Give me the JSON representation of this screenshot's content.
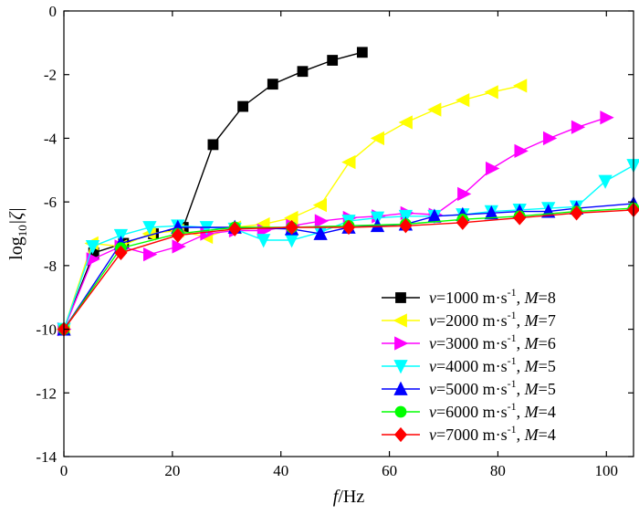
{
  "chart_data": {
    "type": "line",
    "xlabel": {
      "italic": "f",
      "rest": "/Hz"
    },
    "ylabel": {
      "pre": "log",
      "sub": "10",
      "post": "|ζ|"
    },
    "xlim": [
      0,
      105
    ],
    "ylim": [
      -14,
      0
    ],
    "xticks": [
      0,
      20,
      40,
      60,
      80,
      100
    ],
    "yticks": [
      0,
      -2,
      -4,
      -6,
      -8,
      -10,
      -12,
      -14
    ],
    "grid": false,
    "legend_position": "bottom-right",
    "series": [
      {
        "name": "v=1000 m·s-1, M=8",
        "legend": {
          "v": "1000",
          "unit": "m·s",
          "exp": "-1",
          "M": "8"
        },
        "color": "#000000",
        "marker": "square",
        "points": [
          [
            0,
            -10
          ],
          [
            5.5,
            -7.6
          ],
          [
            11,
            -7.3
          ],
          [
            16.5,
            -7.0
          ],
          [
            22,
            -6.8
          ],
          [
            27.5,
            -4.2
          ],
          [
            33,
            -3.0
          ],
          [
            38.5,
            -2.3
          ],
          [
            44,
            -1.9
          ],
          [
            49.5,
            -1.55
          ],
          [
            55,
            -1.3
          ]
        ]
      },
      {
        "name": "v=2000 m·s-1, M=7",
        "legend": {
          "v": "2000",
          "unit": "m·s",
          "exp": "-1",
          "M": "7"
        },
        "color": "#ffff00",
        "marker": "triangle-left",
        "points": [
          [
            0,
            -10
          ],
          [
            5.2,
            -7.3
          ],
          [
            10.5,
            -7.4
          ],
          [
            15.8,
            -7.0
          ],
          [
            21,
            -6.9
          ],
          [
            26.3,
            -7.1
          ],
          [
            31.5,
            -6.8
          ],
          [
            36.8,
            -6.7
          ],
          [
            42,
            -6.5
          ],
          [
            47.3,
            -6.1
          ],
          [
            52.6,
            -4.75
          ],
          [
            57.9,
            -4.0
          ],
          [
            63.1,
            -3.5
          ],
          [
            68.4,
            -3.1
          ],
          [
            73.6,
            -2.8
          ],
          [
            78.9,
            -2.55
          ],
          [
            84.2,
            -2.35
          ]
        ]
      },
      {
        "name": "v=3000 m·s-1, M=6",
        "legend": {
          "v": "3000",
          "unit": "m·s",
          "exp": "-1",
          "M": "6"
        },
        "color": "#ff00ff",
        "marker": "triangle-right",
        "points": [
          [
            0,
            -10
          ],
          [
            5.3,
            -7.8
          ],
          [
            10.5,
            -7.4
          ],
          [
            15.8,
            -7.65
          ],
          [
            21.1,
            -7.4
          ],
          [
            26.3,
            -7.0
          ],
          [
            31.6,
            -6.9
          ],
          [
            36.8,
            -6.9
          ],
          [
            42.1,
            -6.75
          ],
          [
            47.4,
            -6.6
          ],
          [
            52.6,
            -6.5
          ],
          [
            57.9,
            -6.45
          ],
          [
            63.2,
            -6.35
          ],
          [
            68.4,
            -6.4
          ],
          [
            73.7,
            -5.75
          ],
          [
            78.9,
            -4.95
          ],
          [
            84.2,
            -4.4
          ],
          [
            89.5,
            -4.0
          ],
          [
            94.7,
            -3.65
          ],
          [
            100,
            -3.35
          ]
        ]
      },
      {
        "name": "v=4000 m·s-1, M=5",
        "legend": {
          "v": "4000",
          "unit": "m·s",
          "exp": "-1",
          "M": "5"
        },
        "color": "#00ffff",
        "marker": "triangle-down",
        "points": [
          [
            0,
            -10
          ],
          [
            5.3,
            -7.4
          ],
          [
            10.5,
            -7.05
          ],
          [
            15.8,
            -6.8
          ],
          [
            21,
            -6.75
          ],
          [
            26.3,
            -6.8
          ],
          [
            31.5,
            -6.85
          ],
          [
            36.8,
            -7.2
          ],
          [
            42,
            -7.2
          ],
          [
            47.3,
            -6.95
          ],
          [
            52.5,
            -6.6
          ],
          [
            57.8,
            -6.5
          ],
          [
            63,
            -6.45
          ],
          [
            68.3,
            -6.45
          ],
          [
            73.5,
            -6.4
          ],
          [
            78.8,
            -6.3
          ],
          [
            84,
            -6.25
          ],
          [
            89.3,
            -6.2
          ],
          [
            94.5,
            -6.15
          ],
          [
            99.8,
            -5.35
          ],
          [
            105,
            -4.85
          ]
        ]
      },
      {
        "name": "v=5000 m·s-1, M=5",
        "legend": {
          "v": "5000",
          "unit": "m·s",
          "exp": "-1",
          "M": "5"
        },
        "color": "#0000ff",
        "marker": "triangle-up",
        "points": [
          [
            0,
            -10
          ],
          [
            10.5,
            -7.3
          ],
          [
            21,
            -6.8
          ],
          [
            31.5,
            -6.8
          ],
          [
            42,
            -6.85
          ],
          [
            47.3,
            -7.0
          ],
          [
            52.5,
            -6.8
          ],
          [
            57.8,
            -6.75
          ],
          [
            63,
            -6.7
          ],
          [
            68.3,
            -6.45
          ],
          [
            73.5,
            -6.4
          ],
          [
            78.8,
            -6.35
          ],
          [
            84,
            -6.3
          ],
          [
            89.3,
            -6.3
          ],
          [
            94.5,
            -6.2
          ],
          [
            105,
            -6.05
          ]
        ]
      },
      {
        "name": "v=6000 m·s-1, M=4",
        "legend": {
          "v": "6000",
          "unit": "m·s",
          "exp": "-1",
          "M": "4"
        },
        "color": "#00ff00",
        "marker": "circle",
        "points": [
          [
            0,
            -10
          ],
          [
            10.5,
            -7.45
          ],
          [
            21,
            -7.0
          ],
          [
            31.5,
            -6.8
          ],
          [
            42,
            -6.8
          ],
          [
            52.5,
            -6.75
          ],
          [
            63,
            -6.7
          ],
          [
            73.5,
            -6.55
          ],
          [
            84,
            -6.45
          ],
          [
            94.5,
            -6.3
          ],
          [
            105,
            -6.2
          ]
        ]
      },
      {
        "name": "v=7000 m·s-1, M=4",
        "legend": {
          "v": "7000",
          "unit": "m·s",
          "exp": "-1",
          "M": "4"
        },
        "color": "#ff0000",
        "marker": "diamond",
        "points": [
          [
            0,
            -10
          ],
          [
            10.5,
            -7.6
          ],
          [
            21,
            -7.05
          ],
          [
            31.5,
            -6.85
          ],
          [
            42,
            -6.8
          ],
          [
            52.5,
            -6.8
          ],
          [
            63,
            -6.75
          ],
          [
            73.5,
            -6.65
          ],
          [
            84,
            -6.5
          ],
          [
            94.5,
            -6.35
          ],
          [
            105,
            -6.25
          ]
        ]
      }
    ]
  }
}
